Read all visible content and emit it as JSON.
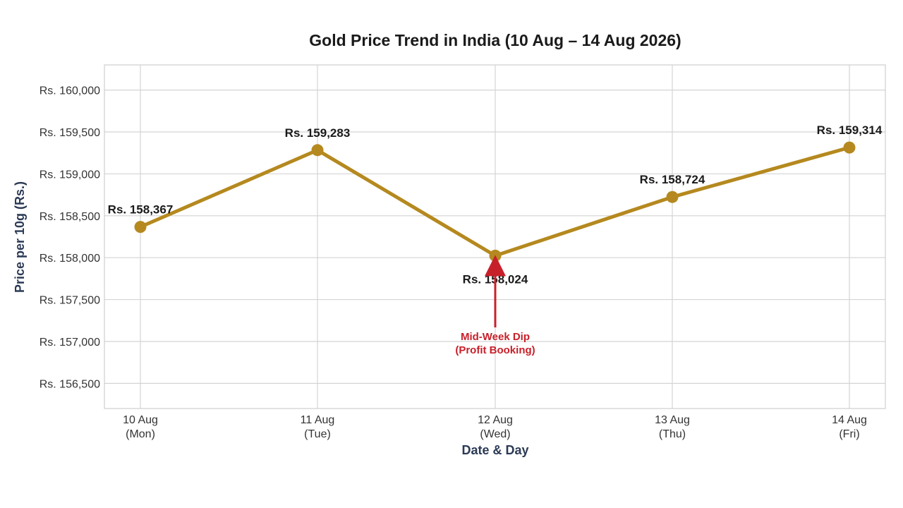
{
  "chart_data": {
    "type": "line",
    "title": "Gold Price Trend in India (10 Aug – 14 Aug 2026)",
    "xlabel": "Date & Day",
    "ylabel": "Price per 10g (Rs.)",
    "categories": [
      [
        "10 Aug",
        "(Mon)"
      ],
      [
        "11 Aug",
        "(Tue)"
      ],
      [
        "12 Aug",
        "(Wed)"
      ],
      [
        "13 Aug",
        "(Thu)"
      ],
      [
        "14 Aug",
        "(Fri)"
      ]
    ],
    "values": [
      158367,
      159283,
      158024,
      158724,
      159314
    ],
    "data_labels": [
      "Rs. 158,367",
      "Rs. 159,283",
      "Rs. 158,024",
      "Rs. 158,724",
      "Rs. 159,314"
    ],
    "ylim": [
      156200,
      160300
    ],
    "yticks": [
      156500,
      157000,
      157500,
      158000,
      158500,
      159000,
      159500,
      160000
    ],
    "ytick_labels": [
      "Rs. 156,500",
      "Rs. 157,000",
      "Rs. 157,500",
      "Rs. 158,000",
      "Rs. 158,500",
      "Rs. 159,000",
      "Rs. 159,500",
      "Rs. 160,000"
    ],
    "grid": true,
    "line_color": "#b5891f",
    "annotation": {
      "lines": [
        "Mid-Week Dip",
        "(Profit Booking)"
      ],
      "point_index": 2,
      "text_y_value": 157000,
      "color": "#c8202a"
    }
  }
}
